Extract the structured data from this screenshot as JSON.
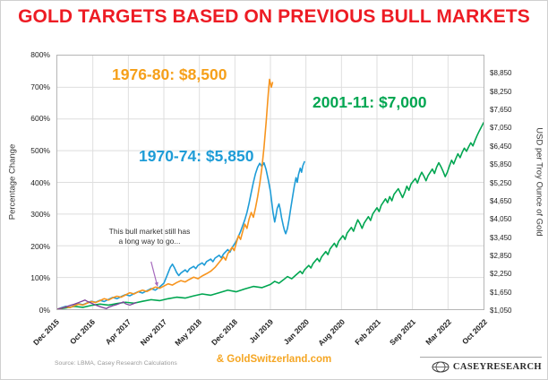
{
  "title": "GOLD TARGETS BASED ON PREVIOUS BULL MARKETS",
  "colors": {
    "title_red": "#ed1c24",
    "gold_credit": "#f5a623"
  },
  "footer": {
    "source": "Source: LBMA, Casey Research Calculations",
    "credit": "& GoldSwitzerland.com",
    "logo_text": "CASEYRESEARCH"
  },
  "chart_data": {
    "type": "line",
    "title": "GOLD TARGETS BASED ON PREVIOUS BULL MARKETS",
    "ylabel_left": "Percentage Change",
    "ylabel_right": "USD per Troy Ounce of Gold",
    "ylim": [
      0,
      800
    ],
    "grid": true,
    "x_unit": "percent of axis width, Dec 2015 = 0, Oct 2022 = 100",
    "y_left_ticks": [
      "0%",
      "100%",
      "200%",
      "300%",
      "400%",
      "500%",
      "600%",
      "700%",
      "800%"
    ],
    "y_right_ticks": [
      "$1,050",
      "$1,650",
      "$2,250",
      "$2,850",
      "$3,450",
      "$4,050",
      "$4,650",
      "$5,250",
      "$5,850",
      "$6,450",
      "$7,050",
      "$7,650",
      "$8,250",
      "$8,850"
    ],
    "y_right_base": 1050,
    "y_right_step": 600,
    "x_tick_labels": [
      "Dec 2015",
      "Oct 2016",
      "Apr 2017",
      "Nov 2017",
      "May 2018",
      "Dec 2018",
      "Jul 2019",
      "Jan 2020",
      "Aug 2020",
      "Feb 2021",
      "Sep 2021",
      "Mar 2022",
      "Oct 2022"
    ],
    "colors": {
      "grid": "#dedede"
    },
    "series_labels": [
      {
        "text": "1976-80: $8,500",
        "color": "#f6a01a"
      },
      {
        "text": "2001-11: $7,000",
        "color": "#00a651"
      },
      {
        "text": "1970-74: $5,850",
        "color": "#1e9cd7"
      }
    ],
    "annotation": {
      "text": "This bull market still has\na long way to go...",
      "arrow_from": [
        22,
        150
      ],
      "arrow_to": [
        23.5,
        72
      ],
      "arrow_color": "#a569bd"
    },
    "series": [
      {
        "id": "2001-11",
        "name": "2001-11: $7,000",
        "color": "#00a651",
        "width": 1.6,
        "points": [
          [
            0,
            0
          ],
          [
            2,
            4
          ],
          [
            4,
            9
          ],
          [
            6,
            6
          ],
          [
            8,
            12
          ],
          [
            10,
            16
          ],
          [
            12,
            13
          ],
          [
            14,
            18
          ],
          [
            16,
            22
          ],
          [
            18,
            19
          ],
          [
            20,
            25
          ],
          [
            22,
            30
          ],
          [
            24,
            27
          ],
          [
            26,
            33
          ],
          [
            28,
            38
          ],
          [
            30,
            35
          ],
          [
            32,
            42
          ],
          [
            34,
            48
          ],
          [
            36,
            44
          ],
          [
            38,
            52
          ],
          [
            40,
            60
          ],
          [
            42,
            55
          ],
          [
            44,
            64
          ],
          [
            46,
            72
          ],
          [
            48,
            68
          ],
          [
            50,
            78
          ],
          [
            51,
            88
          ],
          [
            52,
            82
          ],
          [
            53,
            92
          ],
          [
            54,
            103
          ],
          [
            55,
            96
          ],
          [
            56,
            108
          ],
          [
            57,
            120
          ],
          [
            57.5,
            112
          ],
          [
            58,
            124
          ],
          [
            59,
            138
          ],
          [
            59.5,
            130
          ],
          [
            60,
            144
          ],
          [
            61,
            160
          ],
          [
            61.5,
            150
          ],
          [
            62,
            165
          ],
          [
            63,
            182
          ],
          [
            63.5,
            172
          ],
          [
            64,
            190
          ],
          [
            65,
            208
          ],
          [
            65.5,
            196
          ],
          [
            66,
            214
          ],
          [
            67,
            232
          ],
          [
            67.5,
            220
          ],
          [
            68,
            240
          ],
          [
            69,
            258
          ],
          [
            69.5,
            246
          ],
          [
            70,
            265
          ],
          [
            70.5,
            282
          ],
          [
            71,
            270
          ],
          [
            71.5,
            255
          ],
          [
            72,
            272
          ],
          [
            73,
            292
          ],
          [
            73.5,
            280
          ],
          [
            74,
            300
          ],
          [
            75,
            320
          ],
          [
            75.5,
            308
          ],
          [
            76,
            328
          ],
          [
            77,
            348
          ],
          [
            77.5,
            336
          ],
          [
            78,
            355
          ],
          [
            78.5,
            342
          ],
          [
            79,
            362
          ],
          [
            80,
            380
          ],
          [
            80.5,
            366
          ],
          [
            81,
            352
          ],
          [
            81.5,
            368
          ],
          [
            82,
            388
          ],
          [
            82.5,
            375
          ],
          [
            83,
            395
          ],
          [
            84,
            412
          ],
          [
            84.5,
            398
          ],
          [
            85,
            418
          ],
          [
            85.5,
            432
          ],
          [
            86,
            420
          ],
          [
            86.5,
            405
          ],
          [
            87,
            422
          ],
          [
            88,
            442
          ],
          [
            88.5,
            428
          ],
          [
            89,
            448
          ],
          [
            89.5,
            462
          ],
          [
            90,
            450
          ],
          [
            90.5,
            435
          ],
          [
            91,
            418
          ],
          [
            91.5,
            432
          ],
          [
            92,
            452
          ],
          [
            92.5,
            470
          ],
          [
            93,
            458
          ],
          [
            93.5,
            475
          ],
          [
            94,
            490
          ],
          [
            94.5,
            478
          ],
          [
            95,
            495
          ],
          [
            95.5,
            508
          ],
          [
            96,
            498
          ],
          [
            96.5,
            512
          ],
          [
            97,
            525
          ],
          [
            97.5,
            515
          ],
          [
            98,
            532
          ],
          [
            98.5,
            548
          ],
          [
            99,
            562
          ],
          [
            99.5,
            575
          ],
          [
            100,
            588
          ]
        ]
      },
      {
        "id": "1970-74",
        "name": "1970-74: $5,850",
        "color": "#1e9cd7",
        "width": 1.6,
        "points": [
          [
            0,
            0
          ],
          [
            1,
            5
          ],
          [
            2,
            9
          ],
          [
            3,
            6
          ],
          [
            4,
            12
          ],
          [
            5,
            17
          ],
          [
            6,
            14
          ],
          [
            7,
            20
          ],
          [
            8,
            25
          ],
          [
            9,
            22
          ],
          [
            10,
            28
          ],
          [
            11,
            24
          ],
          [
            12,
            31
          ],
          [
            13,
            37
          ],
          [
            14,
            33
          ],
          [
            15,
            40
          ],
          [
            16,
            46
          ],
          [
            17,
            42
          ],
          [
            18,
            49
          ],
          [
            19,
            55
          ],
          [
            20,
            51
          ],
          [
            21,
            58
          ],
          [
            22,
            65
          ],
          [
            23,
            60
          ],
          [
            24,
            70
          ],
          [
            25,
            82
          ],
          [
            25.5,
            98
          ],
          [
            26,
            115
          ],
          [
            26.5,
            132
          ],
          [
            27,
            142
          ],
          [
            27.5,
            130
          ],
          [
            28,
            116
          ],
          [
            28.5,
            106
          ],
          [
            29,
            114
          ],
          [
            30,
            124
          ],
          [
            30.5,
            117
          ],
          [
            31,
            127
          ],
          [
            32,
            135
          ],
          [
            32.5,
            128
          ],
          [
            33,
            138
          ],
          [
            34,
            146
          ],
          [
            34.5,
            139
          ],
          [
            35,
            150
          ],
          [
            36,
            158
          ],
          [
            36.5,
            150
          ],
          [
            37,
            161
          ],
          [
            38,
            170
          ],
          [
            38.5,
            162
          ],
          [
            39,
            174
          ],
          [
            40,
            188
          ],
          [
            40.5,
            180
          ],
          [
            41,
            194
          ],
          [
            42,
            215
          ],
          [
            43,
            245
          ],
          [
            44,
            282
          ],
          [
            44.5,
            305
          ],
          [
            45,
            335
          ],
          [
            45.5,
            368
          ],
          [
            46,
            400
          ],
          [
            46.5,
            428
          ],
          [
            47,
            448
          ],
          [
            47.5,
            460
          ],
          [
            48,
            450
          ],
          [
            48.5,
            462
          ],
          [
            49,
            440
          ],
          [
            49.5,
            408
          ],
          [
            50,
            372
          ],
          [
            50.3,
            340
          ],
          [
            50.6,
            305
          ],
          [
            51,
            275
          ],
          [
            51.3,
            295
          ],
          [
            51.6,
            318
          ],
          [
            52,
            332
          ],
          [
            52.3,
            315
          ],
          [
            52.6,
            290
          ],
          [
            53,
            265
          ],
          [
            53.3,
            248
          ],
          [
            53.6,
            238
          ],
          [
            54,
            255
          ],
          [
            54.4,
            285
          ],
          [
            54.8,
            320
          ],
          [
            55.2,
            355
          ],
          [
            55.6,
            388
          ],
          [
            56,
            415
          ],
          [
            56.3,
            400
          ],
          [
            56.6,
            425
          ],
          [
            57,
            445
          ],
          [
            57.3,
            432
          ],
          [
            57.6,
            452
          ],
          [
            58,
            465
          ]
        ]
      },
      {
        "id": "1976-80",
        "name": "1976-80: $8,500",
        "color": "#f7941d",
        "width": 1.6,
        "points": [
          [
            0,
            0
          ],
          [
            1,
            3
          ],
          [
            2,
            7
          ],
          [
            3,
            5
          ],
          [
            4,
            11
          ],
          [
            5,
            16
          ],
          [
            6,
            13
          ],
          [
            7,
            19
          ],
          [
            8,
            24
          ],
          [
            9,
            21
          ],
          [
            10,
            27
          ],
          [
            11,
            33
          ],
          [
            12,
            29
          ],
          [
            13,
            36
          ],
          [
            14,
            41
          ],
          [
            15,
            38
          ],
          [
            16,
            45
          ],
          [
            17,
            52
          ],
          [
            18,
            48
          ],
          [
            19,
            55
          ],
          [
            20,
            60
          ],
          [
            21,
            56
          ],
          [
            22,
            63
          ],
          [
            23,
            70
          ],
          [
            24,
            66
          ],
          [
            25,
            73
          ],
          [
            26,
            80
          ],
          [
            27,
            76
          ],
          [
            28,
            84
          ],
          [
            29,
            90
          ],
          [
            30,
            86
          ],
          [
            31,
            94
          ],
          [
            32,
            101
          ],
          [
            33,
            96
          ],
          [
            34,
            105
          ],
          [
            35,
            112
          ],
          [
            36,
            120
          ],
          [
            37,
            132
          ],
          [
            38,
            148
          ],
          [
            39,
            165
          ],
          [
            39.5,
            155
          ],
          [
            40,
            175
          ],
          [
            41,
            195
          ],
          [
            41.5,
            185
          ],
          [
            42,
            210
          ],
          [
            42.5,
            232
          ],
          [
            43,
            220
          ],
          [
            43.5,
            245
          ],
          [
            44,
            268
          ],
          [
            44.5,
            255
          ],
          [
            45,
            285
          ],
          [
            45.5,
            305
          ],
          [
            46,
            290
          ],
          [
            46.5,
            320
          ],
          [
            47,
            355
          ],
          [
            47.5,
            395
          ],
          [
            48,
            445
          ],
          [
            48.5,
            510
          ],
          [
            49,
            590
          ],
          [
            49.5,
            680
          ],
          [
            49.8,
            725
          ],
          [
            50.2,
            700
          ],
          [
            50.5,
            715
          ]
        ]
      },
      {
        "id": "this-bull-market",
        "name": "This bull market",
        "color": "#7d3f98",
        "width": 1.3,
        "points": [
          [
            0,
            0
          ],
          [
            1,
            3
          ],
          [
            2,
            7
          ],
          [
            3,
            12
          ],
          [
            4,
            16
          ],
          [
            5,
            21
          ],
          [
            6,
            26
          ],
          [
            6.5,
            29
          ],
          [
            7,
            25
          ],
          [
            8,
            19
          ],
          [
            9,
            13
          ],
          [
            10,
            8
          ],
          [
            11,
            4
          ],
          [
            11.5,
            2
          ],
          [
            12,
            6
          ],
          [
            13,
            11
          ],
          [
            14,
            15
          ],
          [
            15,
            20
          ],
          [
            15.5,
            23
          ],
          [
            16,
            17
          ],
          [
            17,
            13
          ],
          [
            18,
            18
          ],
          [
            18.5,
            21
          ]
        ]
      }
    ]
  }
}
